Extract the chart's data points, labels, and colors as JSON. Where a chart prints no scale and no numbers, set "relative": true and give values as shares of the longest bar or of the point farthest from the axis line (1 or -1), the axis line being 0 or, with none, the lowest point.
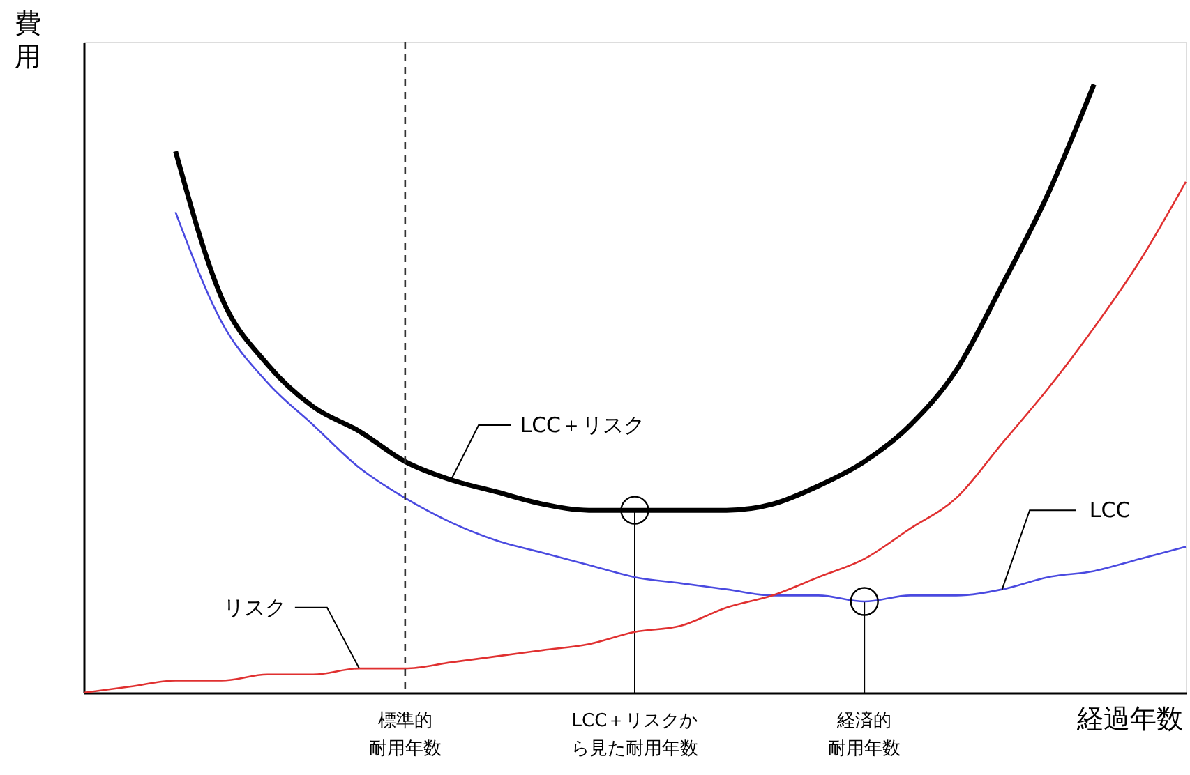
{
  "chart_data": {
    "type": "line",
    "relative": true,
    "xlabel": "経過年数",
    "ylabel": "費用",
    "categories": [
      null,
      null,
      null,
      null,
      null,
      null,
      null,
      null,
      null,
      null,
      null,
      null,
      null,
      null,
      null,
      null,
      null,
      null,
      null,
      null,
      null,
      null,
      null,
      null,
      null
    ],
    "series": [
      {
        "name": "LCC＋リスク",
        "color": "#000000",
        "values": [
          null,
          null,
          0.89,
          0.65,
          0.54,
          0.47,
          0.43,
          0.38,
          0.35,
          0.33,
          0.31,
          0.3,
          0.3,
          0.3,
          0.3,
          0.31,
          0.34,
          0.38,
          0.44,
          0.53,
          0.67,
          0.82,
          1.0,
          null,
          null
        ]
      },
      {
        "name": "LCC",
        "color": "#4a4ae0",
        "values": [
          null,
          null,
          0.79,
          0.61,
          0.51,
          0.44,
          0.37,
          0.32,
          0.28,
          0.25,
          0.23,
          0.21,
          0.19,
          0.18,
          0.17,
          0.16,
          0.16,
          0.15,
          0.16,
          0.16,
          0.17,
          0.19,
          0.2,
          0.22,
          0.24
        ]
      },
      {
        "name": "リスク",
        "color": "#e03030",
        "values": [
          0,
          0.01,
          0.02,
          0.02,
          0.03,
          0.03,
          0.04,
          0.04,
          0.05,
          0.06,
          0.07,
          0.08,
          0.1,
          0.11,
          0.14,
          0.16,
          0.19,
          0.22,
          0.27,
          0.32,
          0.41,
          0.5,
          0.6,
          0.71,
          0.84
        ]
      }
    ],
    "annotations": [
      "標準的耐用年数",
      "LCC＋リスクから見た耐用年数",
      "経済的耐用年数"
    ]
  }
}
